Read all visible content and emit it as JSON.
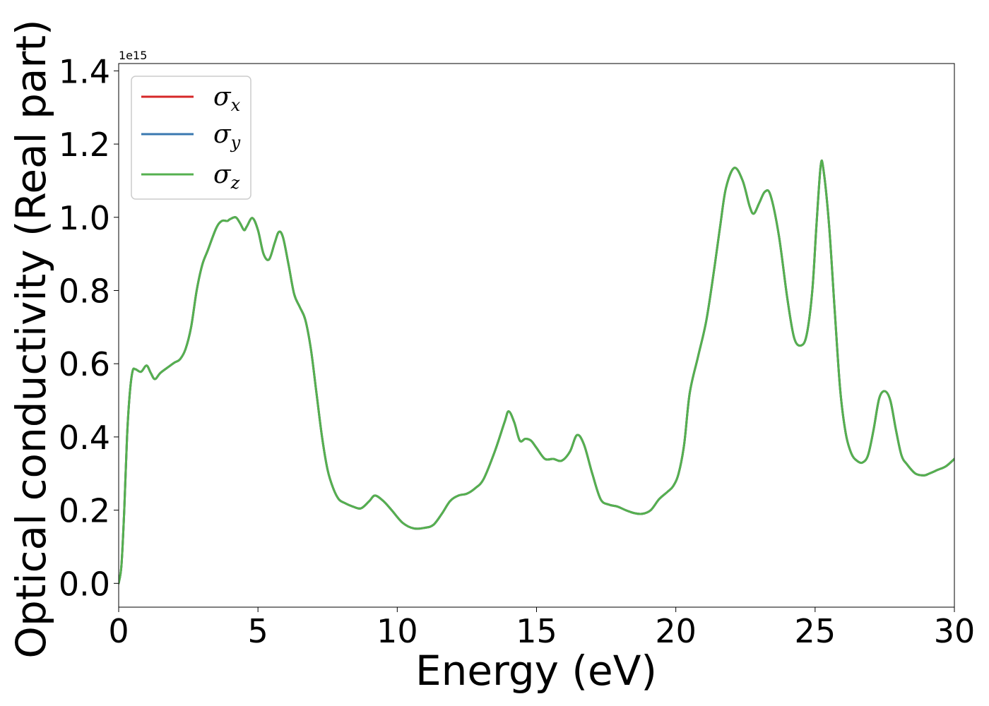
{
  "chart_data": {
    "type": "line",
    "xlabel": "Energy (eV)",
    "ylabel": "Optical conductivity (Real part)",
    "y_offset_text": "1e15",
    "xlim": [
      0,
      30
    ],
    "ylim": [
      -0.065,
      1.42
    ],
    "x_ticks": [
      0,
      5,
      10,
      15,
      20,
      25,
      30
    ],
    "x_tick_labels": [
      "0",
      "5",
      "10",
      "15",
      "20",
      "25",
      "30"
    ],
    "y_ticks": [
      0.0,
      0.2,
      0.4,
      0.6,
      0.8,
      1.0,
      1.2,
      1.4
    ],
    "y_tick_labels": [
      "0.0",
      "0.2",
      "0.4",
      "0.6",
      "0.8",
      "1.0",
      "1.2",
      "1.4"
    ],
    "grid": false,
    "legend_position": "top-left",
    "series": [
      {
        "name": "σx",
        "symbol": "σ",
        "sub": "x",
        "color": "#d62728"
      },
      {
        "name": "σy",
        "symbol": "σ",
        "sub": "y",
        "color": "#3a78b0"
      },
      {
        "name": "σz",
        "symbol": "σ",
        "sub": "z",
        "color": "#55b04f"
      }
    ],
    "x": [
      0,
      0.1,
      0.2,
      0.3,
      0.4,
      0.5,
      0.6,
      0.8,
      1.0,
      1.15,
      1.3,
      1.5,
      1.8,
      2.0,
      2.2,
      2.4,
      2.6,
      2.8,
      3.0,
      3.2,
      3.5,
      3.7,
      3.9,
      4.0,
      4.2,
      4.35,
      4.5,
      4.6,
      4.8,
      5.0,
      5.2,
      5.4,
      5.6,
      5.75,
      5.9,
      6.1,
      6.3,
      6.5,
      6.7,
      6.9,
      7.1,
      7.3,
      7.5,
      7.7,
      7.9,
      8.1,
      8.4,
      8.7,
      9.0,
      9.2,
      9.5,
      9.8,
      10.2,
      10.6,
      11.0,
      11.3,
      11.6,
      11.9,
      12.2,
      12.5,
      12.8,
      13.1,
      13.5,
      13.85,
      14.0,
      14.2,
      14.4,
      14.6,
      14.8,
      15.0,
      15.3,
      15.6,
      15.9,
      16.2,
      16.45,
      16.7,
      17.0,
      17.3,
      17.6,
      17.9,
      18.2,
      18.5,
      18.8,
      19.1,
      19.4,
      19.7,
      19.9,
      20.1,
      20.3,
      20.5,
      20.8,
      21.1,
      21.4,
      21.6,
      21.8,
      22.1,
      22.4,
      22.65,
      22.8,
      23.0,
      23.2,
      23.4,
      23.7,
      24.0,
      24.25,
      24.5,
      24.7,
      24.9,
      25.05,
      25.2,
      25.3,
      25.5,
      25.7,
      25.9,
      26.1,
      26.3,
      26.5,
      26.7,
      26.9,
      27.1,
      27.3,
      27.5,
      27.7,
      27.9,
      28.1,
      28.3,
      28.6,
      28.9,
      29.1,
      29.4,
      29.7,
      30.0
    ],
    "y": [
      0.0,
      0.05,
      0.2,
      0.4,
      0.52,
      0.58,
      0.585,
      0.578,
      0.595,
      0.575,
      0.558,
      0.575,
      0.592,
      0.603,
      0.612,
      0.64,
      0.7,
      0.8,
      0.87,
      0.91,
      0.97,
      0.99,
      0.99,
      0.995,
      1.0,
      0.985,
      0.965,
      0.975,
      0.998,
      0.965,
      0.9,
      0.885,
      0.93,
      0.96,
      0.945,
      0.87,
      0.79,
      0.755,
      0.72,
      0.64,
      0.52,
      0.4,
      0.31,
      0.26,
      0.23,
      0.22,
      0.21,
      0.205,
      0.225,
      0.24,
      0.225,
      0.2,
      0.165,
      0.15,
      0.152,
      0.16,
      0.19,
      0.225,
      0.24,
      0.245,
      0.26,
      0.285,
      0.36,
      0.44,
      0.47,
      0.44,
      0.39,
      0.395,
      0.39,
      0.37,
      0.34,
      0.34,
      0.335,
      0.36,
      0.405,
      0.38,
      0.3,
      0.23,
      0.215,
      0.21,
      0.2,
      0.192,
      0.19,
      0.2,
      0.23,
      0.25,
      0.265,
      0.3,
      0.38,
      0.52,
      0.62,
      0.72,
      0.87,
      0.98,
      1.08,
      1.135,
      1.1,
      1.03,
      1.01,
      1.04,
      1.07,
      1.06,
      0.95,
      0.78,
      0.67,
      0.65,
      0.68,
      0.8,
      0.98,
      1.14,
      1.13,
      0.98,
      0.75,
      0.53,
      0.41,
      0.355,
      0.335,
      0.33,
      0.35,
      0.42,
      0.505,
      0.525,
      0.5,
      0.42,
      0.35,
      0.325,
      0.3,
      0.295,
      0.3,
      0.31,
      0.32,
      0.34
    ]
  }
}
